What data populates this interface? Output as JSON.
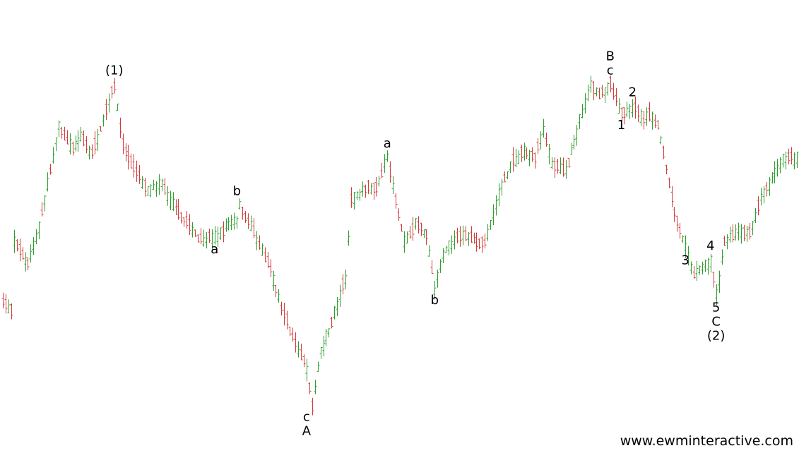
{
  "colors": {
    "up": "#2e9e2e",
    "down": "#d23a3a",
    "label": "#000000",
    "background": "#ffffff"
  },
  "watermark": "www.ewminteractive.com",
  "chart_data": {
    "type": "ohlc",
    "title": "",
    "xlabel": "",
    "ylabel": "",
    "axes_visible": false,
    "grid": false,
    "note": "Price axis is not printed; y values are relative price levels (0-100) read from the plotted bars. x is bar index (0-285).",
    "ylim": [
      0,
      100
    ],
    "xlim": [
      0,
      285
    ],
    "path": [
      [
        0,
        30
      ],
      [
        3,
        28
      ],
      [
        4,
        47
      ],
      [
        9,
        41
      ],
      [
        13,
        51
      ],
      [
        20,
        78
      ],
      [
        25,
        72
      ],
      [
        28,
        76
      ],
      [
        32,
        71
      ],
      [
        35,
        78
      ],
      [
        40,
        90
      ],
      [
        43,
        73
      ],
      [
        47,
        67
      ],
      [
        52,
        61
      ],
      [
        57,
        63
      ],
      [
        61,
        57
      ],
      [
        66,
        52
      ],
      [
        71,
        47
      ],
      [
        76,
        48
      ],
      [
        80,
        51
      ],
      [
        84,
        53
      ],
      [
        85,
        57
      ],
      [
        89,
        51
      ],
      [
        92,
        46
      ],
      [
        96,
        39
      ],
      [
        100,
        29
      ],
      [
        104,
        21
      ],
      [
        109,
        12
      ],
      [
        111,
        2
      ],
      [
        114,
        17
      ],
      [
        118,
        25
      ],
      [
        123,
        37
      ],
      [
        125,
        58
      ],
      [
        129,
        61
      ],
      [
        134,
        62
      ],
      [
        138,
        70
      ],
      [
        141,
        58
      ],
      [
        144,
        47
      ],
      [
        148,
        52
      ],
      [
        152,
        49
      ],
      [
        155,
        34
      ],
      [
        158,
        44
      ],
      [
        164,
        49
      ],
      [
        168,
        48
      ],
      [
        173,
        46
      ],
      [
        178,
        60
      ],
      [
        182,
        68
      ],
      [
        187,
        72
      ],
      [
        191,
        70
      ],
      [
        194,
        78
      ],
      [
        197,
        68
      ],
      [
        202,
        66
      ],
      [
        207,
        80
      ],
      [
        211,
        90
      ],
      [
        214,
        87
      ],
      [
        218,
        90
      ],
      [
        222,
        82
      ],
      [
        226,
        84
      ],
      [
        230,
        80
      ],
      [
        232,
        82
      ],
      [
        235,
        79
      ],
      [
        238,
        67
      ],
      [
        241,
        55
      ],
      [
        245,
        45
      ],
      [
        248,
        38
      ],
      [
        251,
        40
      ],
      [
        254,
        42
      ],
      [
        256,
        32
      ],
      [
        259,
        47
      ],
      [
        264,
        50
      ],
      [
        268,
        49
      ],
      [
        272,
        59
      ],
      [
        276,
        64
      ],
      [
        280,
        70
      ],
      [
        285,
        70
      ]
    ],
    "wave_labels": [
      {
        "text": "(1)",
        "x": 40,
        "y": 90,
        "pos": "above"
      },
      {
        "text": "a",
        "x": 76,
        "y": 48,
        "pos": "below"
      },
      {
        "text": "b",
        "x": 84,
        "y": 57,
        "pos": "above"
      },
      {
        "text": "c",
        "x": 109,
        "y": 2,
        "pos": "below"
      },
      {
        "text": "A",
        "x": 109,
        "y": 2,
        "pos": "below2"
      },
      {
        "text": "a",
        "x": 138,
        "y": 70,
        "pos": "above"
      },
      {
        "text": "b",
        "x": 155,
        "y": 34,
        "pos": "below"
      },
      {
        "text": "B",
        "x": 218,
        "y": 90,
        "pos": "above2"
      },
      {
        "text": "c",
        "x": 218,
        "y": 90,
        "pos": "above"
      },
      {
        "text": "1",
        "x": 222,
        "y": 82,
        "pos": "below"
      },
      {
        "text": "2",
        "x": 226,
        "y": 84,
        "pos": "above"
      },
      {
        "text": "3",
        "x": 245,
        "y": 45,
        "pos": "below"
      },
      {
        "text": "4",
        "x": 254,
        "y": 42,
        "pos": "above"
      },
      {
        "text": "5",
        "x": 256,
        "y": 32,
        "pos": "below"
      },
      {
        "text": "C",
        "x": 256,
        "y": 32,
        "pos": "below2"
      },
      {
        "text": "(2)",
        "x": 256,
        "y": 32,
        "pos": "below3"
      }
    ]
  }
}
